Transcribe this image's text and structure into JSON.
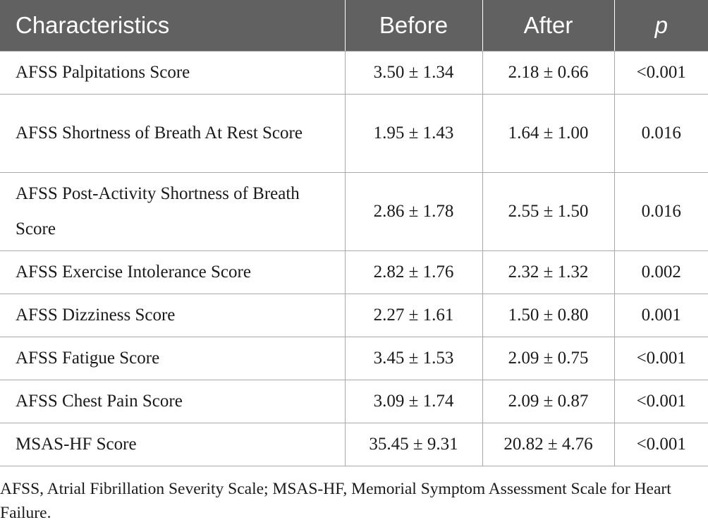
{
  "table": {
    "headers": {
      "characteristics": "Characteristics",
      "before": "Before",
      "after": "After",
      "p": "p"
    },
    "rows": [
      {
        "label": "AFSS Palpitations Score",
        "before": "3.50 ± 1.34",
        "after": "2.18 ± 0.66",
        "p": "<0.001"
      },
      {
        "label": "AFSS Shortness of Breath At Rest Score",
        "before": "1.95 ± 1.43",
        "after": "1.64 ± 1.00",
        "p": "0.016"
      },
      {
        "label": "AFSS Post-Activity Shortness of Breath Score",
        "before": "2.86 ± 1.78",
        "after": "2.55 ± 1.50",
        "p": "0.016"
      },
      {
        "label": "AFSS Exercise Intolerance Score",
        "before": "2.82 ± 1.76",
        "after": "2.32 ± 1.32",
        "p": "0.002"
      },
      {
        "label": "AFSS Dizziness Score",
        "before": "2.27 ± 1.61",
        "after": "1.50 ± 0.80",
        "p": "0.001"
      },
      {
        "label": "AFSS Fatigue Score",
        "before": "3.45 ± 1.53",
        "after": "2.09 ± 0.75",
        "p": "<0.001"
      },
      {
        "label": "AFSS Chest Pain Score",
        "before": "3.09 ± 1.74",
        "after": "2.09 ± 0.87",
        "p": "<0.001"
      },
      {
        "label": "MSAS-HF Score",
        "before": "35.45 ± 9.31",
        "after": "20.82 ± 4.76",
        "p": "<0.001"
      }
    ]
  },
  "footnote": "AFSS, Atrial Fibrillation Severity Scale; MSAS-HF, Memorial Symptom Assessment Scale for Heart Failure.",
  "colors": {
    "header_background": "#616161",
    "header_text": "#ffffff",
    "grid_line": "#a8a8a8"
  }
}
